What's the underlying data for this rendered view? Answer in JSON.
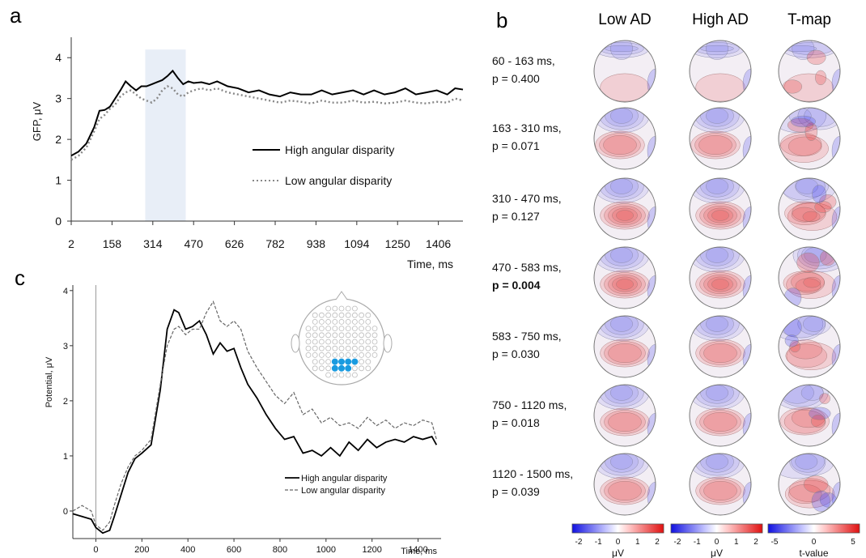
{
  "panels": {
    "a": "a",
    "b": "b",
    "c": "c"
  },
  "chart_data": [
    {
      "type": "line",
      "panel": "a",
      "xlabel": "Time, ms",
      "ylabel": "GFP, μV",
      "xticks": [
        "2",
        "158",
        "314",
        "470",
        "626",
        "782",
        "938",
        "1094",
        "1250",
        "1406"
      ],
      "yticks": [
        "0",
        "1",
        "2",
        "3",
        "4"
      ],
      "xlim": [
        2,
        1500
      ],
      "ylim": [
        0,
        4.5
      ],
      "highlight": {
        "from": 285,
        "to": 440
      },
      "legend": "center-right",
      "series": [
        {
          "name": "High angular disparity",
          "style": "solid",
          "color": "#000000",
          "x": [
            2,
            30,
            60,
            90,
            110,
            130,
            150,
            170,
            190,
            210,
            230,
            250,
            270,
            290,
            310,
            330,
            350,
            370,
            390,
            410,
            430,
            450,
            470,
            500,
            530,
            560,
            600,
            640,
            680,
            720,
            760,
            800,
            840,
            880,
            920,
            960,
            1000,
            1040,
            1080,
            1120,
            1160,
            1200,
            1240,
            1280,
            1320,
            1360,
            1400,
            1440,
            1470,
            1500
          ],
          "y": [
            1.6,
            1.7,
            1.9,
            2.3,
            2.7,
            2.72,
            2.8,
            3.0,
            3.2,
            3.42,
            3.3,
            3.2,
            3.3,
            3.3,
            3.35,
            3.4,
            3.45,
            3.55,
            3.68,
            3.5,
            3.35,
            3.42,
            3.38,
            3.4,
            3.35,
            3.42,
            3.3,
            3.25,
            3.15,
            3.2,
            3.1,
            3.05,
            3.15,
            3.1,
            3.1,
            3.2,
            3.1,
            3.15,
            3.2,
            3.1,
            3.2,
            3.1,
            3.15,
            3.25,
            3.1,
            3.15,
            3.2,
            3.1,
            3.25,
            3.22
          ]
        },
        {
          "name": "Low angular disparity",
          "style": "dotted",
          "color": "#888888",
          "x": [
            2,
            30,
            60,
            90,
            110,
            130,
            150,
            170,
            190,
            210,
            230,
            250,
            270,
            290,
            310,
            330,
            350,
            370,
            390,
            410,
            430,
            450,
            470,
            500,
            530,
            560,
            600,
            640,
            680,
            720,
            760,
            800,
            840,
            880,
            920,
            960,
            1000,
            1040,
            1080,
            1120,
            1160,
            1200,
            1240,
            1280,
            1320,
            1360,
            1400,
            1440,
            1470,
            1500
          ],
          "y": [
            1.5,
            1.6,
            1.8,
            2.2,
            2.5,
            2.6,
            2.75,
            2.85,
            3.05,
            3.15,
            3.2,
            3.1,
            3.0,
            2.95,
            2.9,
            3.0,
            3.2,
            3.3,
            3.25,
            3.1,
            3.05,
            3.15,
            3.2,
            3.25,
            3.2,
            3.25,
            3.15,
            3.1,
            3.05,
            3.0,
            2.95,
            2.9,
            2.95,
            2.92,
            2.88,
            2.95,
            2.9,
            2.9,
            2.95,
            2.9,
            2.92,
            2.88,
            2.9,
            2.95,
            2.9,
            2.88,
            2.92,
            2.9,
            3.0,
            2.95
          ]
        }
      ]
    },
    {
      "type": "line",
      "panel": "c",
      "xlabel": "Time, ms",
      "ylabel": "Potential, μV",
      "xticks": [
        "0",
        "200",
        "400",
        "600",
        "800",
        "1000",
        "1200",
        "1400"
      ],
      "yticks": [
        "0",
        "1",
        "2",
        "3",
        "4"
      ],
      "xlim": [
        -100,
        1500
      ],
      "ylim": [
        -0.5,
        4.1
      ],
      "legend": "bottom-right",
      "series": [
        {
          "name": "High angular disparity",
          "style": "solid",
          "color": "#000000",
          "x": [
            -100,
            -60,
            -20,
            0,
            30,
            60,
            80,
            110,
            140,
            170,
            200,
            240,
            280,
            310,
            340,
            360,
            390,
            420,
            450,
            480,
            510,
            540,
            570,
            600,
            630,
            660,
            700,
            740,
            780,
            820,
            860,
            900,
            940,
            980,
            1020,
            1060,
            1100,
            1140,
            1180,
            1220,
            1260,
            1300,
            1340,
            1380,
            1420,
            1460,
            1480
          ],
          "y": [
            -0.05,
            -0.1,
            -0.15,
            -0.3,
            -0.4,
            -0.35,
            -0.1,
            0.3,
            0.7,
            0.95,
            1.05,
            1.2,
            2.2,
            3.3,
            3.65,
            3.6,
            3.3,
            3.35,
            3.45,
            3.2,
            2.85,
            3.05,
            2.9,
            2.95,
            2.6,
            2.3,
            2.05,
            1.75,
            1.5,
            1.3,
            1.35,
            1.05,
            1.1,
            1.0,
            1.15,
            1.0,
            1.25,
            1.1,
            1.3,
            1.15,
            1.25,
            1.3,
            1.25,
            1.35,
            1.3,
            1.35,
            1.2
          ]
        },
        {
          "name": "Low angular disparity",
          "style": "dashed",
          "color": "#666666",
          "x": [
            -100,
            -60,
            -20,
            0,
            30,
            60,
            80,
            110,
            140,
            170,
            200,
            240,
            280,
            310,
            340,
            360,
            390,
            420,
            450,
            480,
            510,
            540,
            570,
            600,
            630,
            660,
            700,
            740,
            780,
            820,
            860,
            900,
            940,
            980,
            1020,
            1060,
            1100,
            1140,
            1180,
            1220,
            1260,
            1300,
            1340,
            1380,
            1420,
            1460,
            1480
          ],
          "y": [
            0.0,
            0.1,
            0.0,
            -0.25,
            -0.35,
            -0.2,
            0.1,
            0.5,
            0.8,
            1.0,
            1.1,
            1.3,
            2.3,
            3.0,
            3.3,
            3.35,
            3.2,
            3.3,
            3.3,
            3.6,
            3.8,
            3.45,
            3.35,
            3.45,
            3.3,
            2.9,
            2.6,
            2.35,
            2.1,
            1.95,
            2.15,
            1.75,
            1.85,
            1.6,
            1.7,
            1.55,
            1.6,
            1.5,
            1.7,
            1.55,
            1.65,
            1.5,
            1.6,
            1.55,
            1.65,
            1.6,
            1.3
          ]
        }
      ]
    }
  ],
  "topomaps": {
    "columns": [
      "Low AD",
      "High AD",
      "T-map"
    ],
    "rows": [
      {
        "interval": "60 - 163 ms,",
        "p": "p = 0.400",
        "bold": false
      },
      {
        "interval": "163 - 310 ms,",
        "p": "p = 0.071",
        "bold": false
      },
      {
        "interval": "310 - 470 ms,",
        "p": "p = 0.127",
        "bold": false
      },
      {
        "interval": "470 - 583 ms,",
        "p": "p = 0.004",
        "bold": true
      },
      {
        "interval": "583 - 750 ms,",
        "p": "p = 0.030",
        "bold": false
      },
      {
        "interval": "750 - 1120 ms,",
        "p": "p = 0.018",
        "bold": false
      },
      {
        "interval": "1120 - 1500 ms,",
        "p": "p = 0.039",
        "bold": false
      }
    ],
    "colorbars": [
      {
        "ticks": [
          "-2",
          "-1",
          "0",
          "1",
          "2"
        ],
        "unit": "μV"
      },
      {
        "ticks": [
          "-2",
          "-1",
          "0",
          "1",
          "2"
        ],
        "unit": "μV"
      },
      {
        "ticks": [
          "-5",
          "0",
          "5"
        ],
        "unit": "t-value"
      }
    ]
  },
  "colors": {
    "blue": "#3b3bf0",
    "red": "#e83030",
    "highlight": "#e8eef7",
    "electrode_active": "#1a9be0"
  }
}
